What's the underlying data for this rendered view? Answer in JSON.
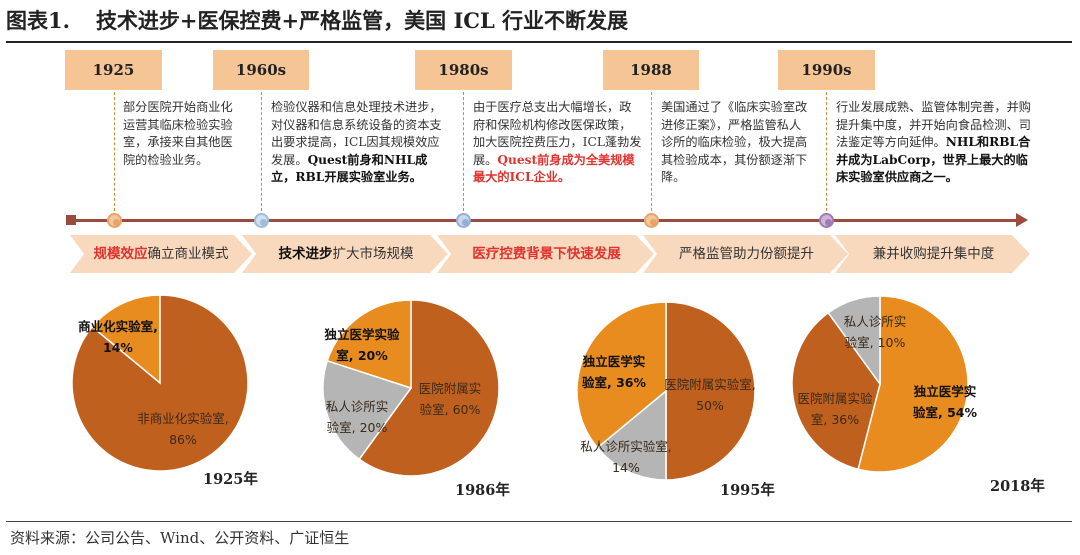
{
  "title": {
    "figure": "图表1.",
    "text": "技术进步+医保控费+严格监管，美国 ICL 行业不断发展"
  },
  "timeline": {
    "years": [
      "1925",
      "1960s",
      "1980s",
      "1988",
      "1990s"
    ],
    "descriptions": [
      {
        "plain": "部分医院开始商业化运营其临床检验实验室，承接来自其他医院的检验业务。",
        "bold": "",
        "red": ""
      },
      {
        "plain": "检验仪器和信息处理技术进步，对仪器和信息系统设备的资本支出要求提高，ICL因其规模效应发展。",
        "bold": "Quest前身和NHL成立，RBL开展实验室业务。",
        "red": ""
      },
      {
        "plain": "由于医疗总支出大幅增长，政府和保险机构修改医保政策，加大医院控费压力，ICL蓬勃发展。",
        "bold": "",
        "red": "Quest前身成为全美规模最大的ICL企业。"
      },
      {
        "plain": "美国通过了《临床实验室改进修正案》，严格监管私人诊所的临床检验，极大提高其检验成本，其份额逐渐下降。",
        "bold": "",
        "red": ""
      },
      {
        "plain": "行业发展成熟、监管体制完善，并购提升集中度，并开始向食品检测、司法鉴定等方向延伸。",
        "bold": "NHL和RBL合并成为LabCorp，世界上最大的临床实验室供应商之一。",
        "red": ""
      }
    ],
    "phases": [
      {
        "hl": "规模效应",
        "bold": "",
        "rest": "确立商业模式"
      },
      {
        "hl": "",
        "bold": "技术进步",
        "rest": "扩大市场规模"
      },
      {
        "hl": "医疗控费背景下快速发展",
        "bold": "",
        "rest": ""
      },
      {
        "hl": "",
        "bold": "",
        "rest": "严格监管助力份额提升"
      },
      {
        "hl": "",
        "bold": "",
        "rest": "兼并收购提升集中度"
      }
    ]
  },
  "colors": {
    "year_box": "#f5c596",
    "phase_arrow": "#f9d9be",
    "timeline": "#9d4b3e",
    "slice_dark": "#c0601f",
    "slice_orange": "#e88c20",
    "slice_gray": "#b5b5b5",
    "marker_fills": [
      "#f2c79d",
      "#cfe0f0",
      "#c9d8ee",
      "#f2c79d",
      "#cdb6d9"
    ],
    "marker_borders": [
      "#e6a469",
      "#9fbcd8",
      "#95afd6",
      "#e6a469",
      "#9d7bb5"
    ]
  },
  "chart_data": [
    {
      "type": "pie",
      "title": "1925年",
      "slices": [
        {
          "label_lines": [
            "商业化实验室,",
            "14%"
          ],
          "value": 14,
          "color": "#e88c20",
          "bold": true
        },
        {
          "label_lines": [
            "非商业化实验室,",
            "86%"
          ],
          "value": 86,
          "color": "#c0601f",
          "bold": false
        }
      ]
    },
    {
      "type": "pie",
      "title": "1986年",
      "slices": [
        {
          "label_lines": [
            "医院附属实",
            "验室, 60%"
          ],
          "value": 60,
          "color": "#c0601f",
          "bold": false
        },
        {
          "label_lines": [
            "私人诊所实",
            "验室, 20%"
          ],
          "value": 20,
          "color": "#b5b5b5",
          "bold": false
        },
        {
          "label_lines": [
            "独立医学实验",
            "室, 20%"
          ],
          "value": 20,
          "color": "#e88c20",
          "bold": true
        }
      ]
    },
    {
      "type": "pie",
      "title": "1995年",
      "slices": [
        {
          "label_lines": [
            "医院附属实验室,",
            "50%"
          ],
          "value": 50,
          "color": "#c0601f",
          "bold": false
        },
        {
          "label_lines": [
            "私人诊所实验室,",
            "14%"
          ],
          "value": 14,
          "color": "#b5b5b5",
          "bold": false
        },
        {
          "label_lines": [
            "独立医学实",
            "验室, 36%"
          ],
          "value": 36,
          "color": "#e88c20",
          "bold": true
        }
      ]
    },
    {
      "type": "pie",
      "title": "2018年",
      "slices": [
        {
          "label_lines": [
            "独立医学实",
            "验室, 54%"
          ],
          "value": 54,
          "color": "#e88c20",
          "bold": true
        },
        {
          "label_lines": [
            "医院附属实验",
            "室, 36%"
          ],
          "value": 36,
          "color": "#c0601f",
          "bold": false
        },
        {
          "label_lines": [
            "私人诊所实",
            "验室, 10%"
          ],
          "value": 10,
          "color": "#b5b5b5",
          "bold": false
        }
      ]
    }
  ],
  "source": "资料来源：公司公告、Wind、公开资料、广证恒生"
}
